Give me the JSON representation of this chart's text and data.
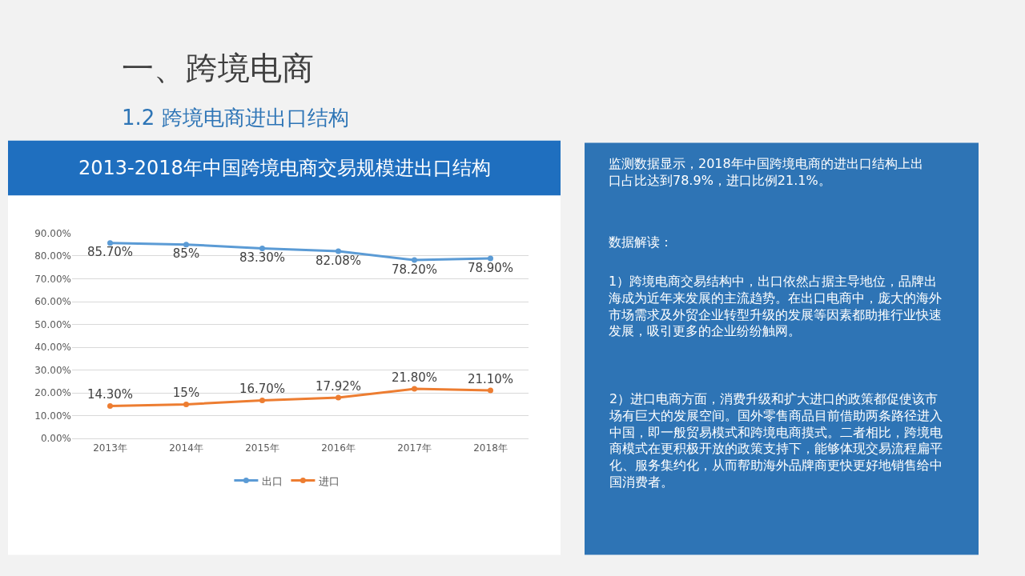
{
  "chart_data": {
    "type": "line",
    "title": "2013-2018年中国跨境电商交易规模进出口结构",
    "categories": [
      "2013年",
      "2014年",
      "2015年",
      "2016年",
      "2017年",
      "2018年"
    ],
    "series": [
      {
        "name": "出口",
        "color": "#5b9bd5",
        "values": [
          85.7,
          85,
          83.3,
          82.08,
          78.2,
          78.9
        ],
        "value_labels": [
          "85.70%",
          "85%",
          "83.30%",
          "82.08%",
          "78.20%",
          "78.90%"
        ]
      },
      {
        "name": "进口",
        "color": "#ed7d31",
        "values": [
          14.3,
          15,
          16.7,
          17.92,
          21.8,
          21.1
        ],
        "value_labels": [
          "14.30%",
          "15%",
          "16.70%",
          "17.92%",
          "21.80%",
          "21.10%"
        ]
      }
    ],
    "ylim": [
      0,
      90
    ],
    "yticks": [
      {
        "value": 0,
        "label": "0.00%"
      },
      {
        "value": 10,
        "label": "10.00%"
      },
      {
        "value": 20,
        "label": "20.00%"
      },
      {
        "value": 30,
        "label": "30.00%"
      },
      {
        "value": 40,
        "label": "40.00%"
      },
      {
        "value": 50,
        "label": "50.00%"
      },
      {
        "value": 60,
        "label": "60.00%"
      },
      {
        "value": 70,
        "label": "70.00%"
      },
      {
        "value": 80,
        "label": "80.00%"
      },
      {
        "value": 90,
        "label": "90.00%"
      }
    ],
    "grid": "y",
    "legend": "bottom",
    "marker": "circle",
    "line_style": "solid",
    "annotations": [
      "一、跨境电商",
      "1.2 跨境电商进出口结构",
      "监测数据显示，2018年中国跨境电商的进出口结构上出口占比达到78.9%，进口比例21.1%。",
      "数据解读：",
      "1）跨境电商交易结构中，出口依然占据主导地位，品牌出海成为近年来发展的主流趋势。在出口电商中，庞大的海外市场需求及外贸企业转型升级的发展等因素都助推行业快速发展，吸引更多的企业纷纷触网。",
      "2）进口电商方面，消费升级和扩大进口的政策都促使该市场有巨大的发展空间。国外零售商品目前借助两条路径进入中国，即一般贸易模式和跨境电商摸式。二者相比，跨境电商模式在更积极开放的政策支持下，能够体现交易流程扁平化、服务集约化，从而帮助海外品牌商更快更好地销售给中国消费者。"
    ]
  }
}
